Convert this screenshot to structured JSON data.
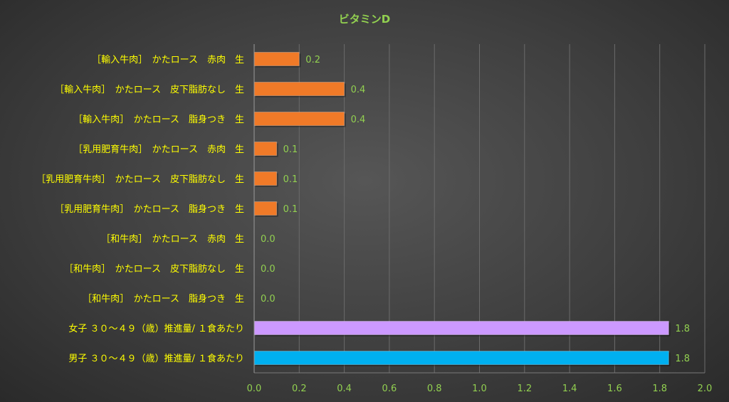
{
  "chart_data": {
    "type": "bar",
    "orientation": "horizontal",
    "title": "ビタミンD",
    "xlabel": "",
    "ylabel": "",
    "xlim": [
      0,
      2.0
    ],
    "x_ticks": [
      "0.0",
      "0.2",
      "0.4",
      "0.6",
      "0.8",
      "1.0",
      "1.2",
      "1.4",
      "1.6",
      "1.8",
      "2.0"
    ],
    "grid": "vertical",
    "legend": "none",
    "categories": [
      "［輸入牛肉］　かたロース　赤肉　生",
      "［輸入牛肉］　かたロース　皮下脂肪なし　生",
      "［輸入牛肉］　かたロース　脂身つき　生",
      "［乳用肥育牛肉］　かたロース　赤肉　生",
      "［乳用肥育牛肉］　かたロース　皮下脂肪なし　生",
      "［乳用肥育牛肉］　かたロース　脂身つき　生",
      "［和牛肉］　かたロース　赤肉　生",
      "［和牛肉］　かたロース　皮下脂肪なし　生",
      "［和牛肉］　かたロース　脂身つき　生",
      "女子 ３０～４９（歳）推進量/ １食あたり",
      "男子 ３０～４９（歳）推進量/ １食あたり"
    ],
    "values": [
      0.2,
      0.4,
      0.4,
      0.1,
      0.1,
      0.1,
      0.0,
      0.0,
      0.0,
      1.84,
      1.84
    ],
    "data_labels": [
      "0.2",
      "0.4",
      "0.4",
      "0.1",
      "0.1",
      "0.1",
      "0.0",
      "0.0",
      "0.0",
      "1.8",
      "1.8"
    ],
    "colors": [
      "#f07a28",
      "#f07a28",
      "#f07a28",
      "#f07a28",
      "#f07a28",
      "#f07a28",
      "#f07a28",
      "#f07a28",
      "#f07a28",
      "#cc99ff",
      "#00b0f0"
    ]
  },
  "style": {
    "title_color": "#92d050",
    "category_label_color": "#ffff00",
    "tick_label_color": "#92d050",
    "data_label_color": "#92d050",
    "gridline_color": "#6b6b6b"
  }
}
